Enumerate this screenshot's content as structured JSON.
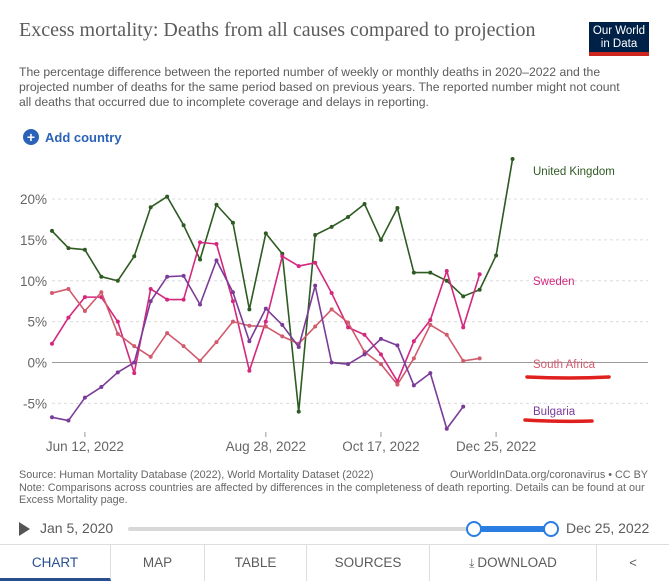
{
  "header": {
    "title": "Excess mortality: Deaths from all causes compared to projection",
    "subtitle": "The percentage difference between the reported number of weekly or monthly deaths in 2020–2022 and the projected number of deaths for the same period based on previous years. The reported number might not count all deaths that occurred due to incomplete coverage and delays in reporting.",
    "logo": "Our World in Data"
  },
  "add_country": "Add country",
  "footer": {
    "source": "Source: Human Mortality Database (2022), World Mortality Dataset (2022)",
    "note": "Note: Comparisons across countries are affected by differences in the completeness of death reporting. Details can be found at our Excess Mortality page.",
    "credit": "OurWorldInData.org/coronavirus • CC BY"
  },
  "timeline": {
    "start": "Jan 5, 2020",
    "end": "Dec 25, 2022"
  },
  "tabs": [
    "CHART",
    "MAP",
    "TABLE",
    "SOURCES",
    "DOWNLOAD"
  ],
  "chart_data": {
    "type": "line",
    "y_ticks": [
      -5,
      0,
      5,
      10,
      15,
      20
    ],
    "y_tick_labels": [
      "-5%",
      "0%",
      "5%",
      "10%",
      "15%",
      "20%"
    ],
    "ylim": [
      -8.5,
      26
    ],
    "x_range": [
      0,
      29
    ],
    "x_ticks": [
      {
        "x": 2,
        "label": "Jun 12, 2022"
      },
      {
        "x": 13,
        "label": "Aug 28, 2022"
      },
      {
        "x": 20,
        "label": "Oct 17, 2022"
      },
      {
        "x": 27,
        "label": "Dec 25, 2022"
      }
    ],
    "series": [
      {
        "name": "United Kingdom",
        "color": "#2e5b22",
        "x": [
          0,
          1,
          2,
          3,
          4,
          5,
          6,
          7,
          8,
          9,
          10,
          11,
          12,
          13,
          14,
          15,
          16,
          17,
          18,
          19,
          20,
          21,
          22,
          23,
          24,
          25,
          26,
          27,
          28,
          29
        ],
        "y": [
          16.1,
          14,
          13.8,
          10.5,
          10,
          13,
          19,
          20.3,
          16.8,
          12.6,
          19.3,
          17.1,
          6.5,
          15.8,
          13.3,
          -6,
          15.6,
          16.6,
          17.8,
          19.4,
          15,
          18.9,
          11,
          11,
          10,
          8.1,
          8.9,
          13.1,
          24.9,
          null
        ]
      },
      {
        "name": "Sweden",
        "color": "#d4287e",
        "x": [
          0,
          1,
          2,
          3,
          4,
          5,
          6,
          7,
          8,
          9,
          10,
          11,
          12,
          13,
          14,
          15,
          16,
          17,
          18,
          19,
          20,
          21,
          22,
          23,
          24,
          25,
          26
        ],
        "y": [
          2.3,
          5.5,
          8,
          8,
          5,
          -1.3,
          9,
          7.7,
          7.7,
          14.7,
          14.5,
          7.5,
          -1,
          5,
          13,
          11.8,
          12.2,
          8.5,
          4.3,
          3.4,
          1,
          -2.3,
          2.6,
          5.2,
          11.2,
          4.3,
          10.8
        ]
      },
      {
        "name": "South Africa",
        "color": "#d15a6d",
        "x": [
          0,
          1,
          2,
          3,
          4,
          5,
          6,
          7,
          8,
          9,
          10,
          11,
          12,
          13,
          14,
          15,
          16,
          17,
          18,
          19,
          20,
          21,
          22,
          23,
          24,
          25,
          26
        ],
        "y": [
          8.5,
          9,
          6.3,
          8.6,
          3.5,
          2,
          0.7,
          3.6,
          2,
          0.2,
          2.5,
          5,
          4.5,
          4.4,
          3.2,
          2.3,
          4.4,
          6.5,
          4.9,
          1.3,
          -0.2,
          -2.7,
          0.5,
          4.6,
          3.4,
          0.2,
          0.5
        ]
      },
      {
        "name": "Bulgaria",
        "color": "#7b3c98",
        "x": [
          0,
          1,
          2,
          3,
          4,
          5,
          6,
          7,
          8,
          9,
          10,
          11,
          12,
          13,
          14,
          15,
          16,
          17,
          18,
          19,
          20,
          21,
          22,
          23,
          24,
          25
        ],
        "y": [
          -6.7,
          -7.1,
          -4.3,
          -3,
          -1.2,
          0,
          7.5,
          10.5,
          10.6,
          7.1,
          12.5,
          8.6,
          2.6,
          6.6,
          4.6,
          1.9,
          9.4,
          0,
          -0.2,
          1,
          2.9,
          2.1,
          -2.8,
          -1.3,
          -8.1,
          -5.4
        ]
      }
    ]
  }
}
